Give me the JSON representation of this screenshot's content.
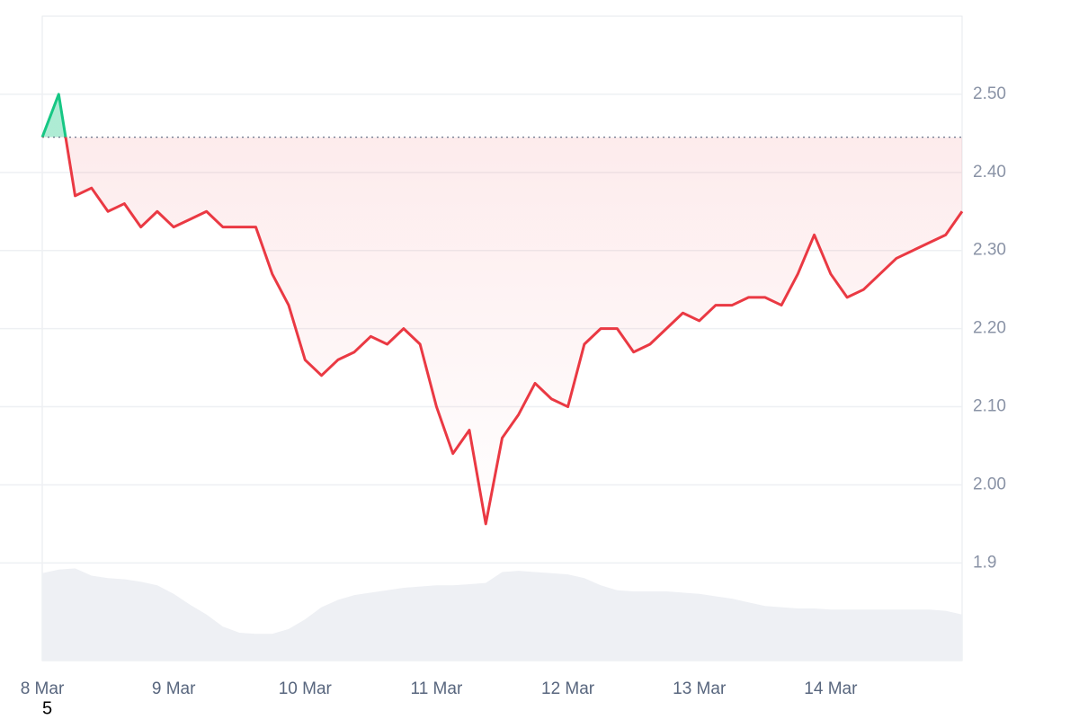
{
  "chart_data": {
    "type": "line",
    "x": [
      0,
      3,
      6,
      9,
      12,
      15,
      18,
      21,
      24,
      27,
      30,
      33,
      36,
      39,
      42,
      45,
      48,
      51,
      54,
      57,
      60,
      63,
      66,
      69,
      72,
      75,
      78,
      81,
      84,
      87,
      90,
      93,
      96,
      99,
      102,
      105,
      108,
      111,
      114,
      117,
      120,
      123,
      126,
      129,
      132,
      135,
      138,
      141,
      144,
      147,
      150,
      153,
      156,
      159,
      162,
      165,
      168
    ],
    "xlim": [
      0,
      168
    ],
    "xticks": [
      {
        "value": 0,
        "label": "8 Mar"
      },
      {
        "value": 24,
        "label": "9 Mar"
      },
      {
        "value": 48,
        "label": "10 Mar"
      },
      {
        "value": 72,
        "label": "11 Mar"
      },
      {
        "value": 96,
        "label": "12 Mar"
      },
      {
        "value": 120,
        "label": "13 Mar"
      },
      {
        "value": 144,
        "label": "14 Mar"
      }
    ],
    "values": [
      2.445,
      2.5,
      2.37,
      2.38,
      2.35,
      2.36,
      2.33,
      2.35,
      2.33,
      2.34,
      2.35,
      2.33,
      2.33,
      2.33,
      2.27,
      2.23,
      2.16,
      2.14,
      2.16,
      2.17,
      2.19,
      2.18,
      2.2,
      2.18,
      2.1,
      2.04,
      2.07,
      1.95,
      2.06,
      2.09,
      2.13,
      2.11,
      2.1,
      2.18,
      2.2,
      2.2,
      2.17,
      2.18,
      2.2,
      2.22,
      2.21,
      2.23,
      2.23,
      2.24,
      2.24,
      2.23,
      2.27,
      2.32,
      2.27,
      2.24,
      2.25,
      2.27,
      2.29,
      2.3,
      2.31,
      2.32,
      2.35
    ],
    "baseline": 2.445,
    "up_color": "#16c784",
    "down_color": "#ea3943",
    "ylim": [
      1.775,
      2.6
    ],
    "yticks": [
      1.9,
      {
        "value": 2,
        "label": "2.00"
      },
      {
        "value": 2.1,
        "label": "2.10"
      },
      {
        "value": 2.2,
        "label": "2.20"
      },
      {
        "value": 2.3,
        "label": "2.30"
      },
      {
        "value": 2.4,
        "label": "2.40"
      },
      {
        "value": 2.5,
        "label": "2.50"
      }
    ],
    "grid": true,
    "volume_values": [
      72,
      75,
      76,
      70,
      68,
      67,
      65,
      62,
      55,
      46,
      38,
      28,
      23,
      22,
      22,
      26,
      34,
      44,
      50,
      54,
      56,
      58,
      60,
      61,
      62,
      62,
      63,
      64,
      73,
      74,
      73,
      72,
      71,
      68,
      62,
      58,
      57,
      57,
      57,
      56,
      55,
      53,
      51,
      48,
      45,
      44,
      43,
      43,
      42,
      42,
      42,
      42,
      42,
      42,
      42,
      41,
      38
    ],
    "volume_ylim": [
      0,
      100
    ],
    "volume_color": "#eef0f4",
    "corner_label": "5"
  }
}
